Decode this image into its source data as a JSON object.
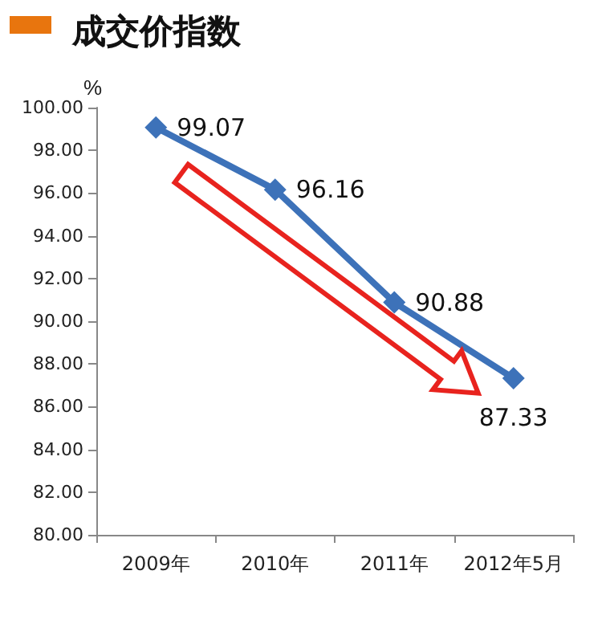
{
  "chart_data": {
    "type": "line",
    "title": "成交价指数",
    "ylabel": "%",
    "categories": [
      "2009年",
      "2010年",
      "2011年",
      "2012年5月"
    ],
    "series": [
      {
        "color": "#3d72b9",
        "values": [
          99.07,
          96.16,
          90.88,
          87.33
        ]
      }
    ],
    "ylim": [
      80,
      100
    ],
    "yticks": [
      {
        "value": 80,
        "label": "80.00"
      },
      {
        "value": 82,
        "label": "82.00"
      },
      {
        "value": 84,
        "label": "84.00"
      },
      {
        "value": 86,
        "label": "86.00"
      },
      {
        "value": 88,
        "label": "88.00"
      },
      {
        "value": 90,
        "label": "90.00"
      },
      {
        "value": 92,
        "label": "92.00"
      },
      {
        "value": 94,
        "label": "94.00"
      },
      {
        "value": 96,
        "label": "96.00"
      },
      {
        "value": 98,
        "label": "98.00"
      },
      {
        "value": 100,
        "label": "100.00"
      }
    ],
    "grid": false,
    "marker": "diamond",
    "line_style": "solid",
    "data_labels": true
  }
}
